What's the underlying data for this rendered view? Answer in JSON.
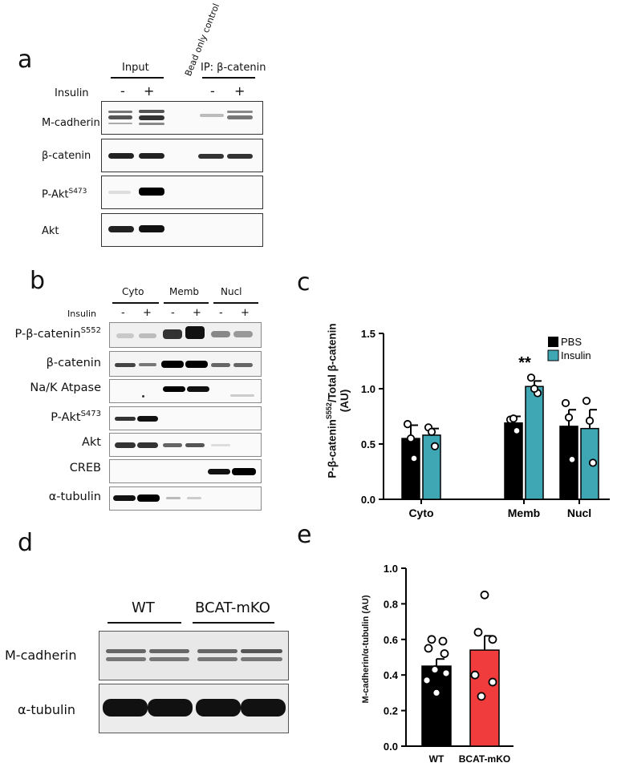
{
  "panels": {
    "a": "a",
    "b": "b",
    "c": "c",
    "d": "d",
    "e": "e"
  },
  "panel_a": {
    "input_label": "Input",
    "bead_label": "Bead only control",
    "ip_label": "IP: β-catenin",
    "insulin_label": "Insulin",
    "signs": [
      "-",
      "+",
      "-",
      "+"
    ],
    "rows": [
      "M-cadherin",
      "β-catenin",
      "P-Akt",
      "Akt"
    ],
    "pakt_sup": "S473"
  },
  "panel_b": {
    "fractions": [
      "Cyto",
      "Memb",
      "Nucl"
    ],
    "insulin_label": "Insulin",
    "signs": [
      "-",
      "+",
      "-",
      "+",
      "-",
      "+"
    ],
    "rows": [
      "P-β-catenin",
      "β-catenin",
      "Na/K Atpase",
      "P-Akt",
      "Akt",
      "CREB",
      "α-tubulin"
    ],
    "pbcat_sup": "S552",
    "pakt_sup": "S473"
  },
  "panel_d": {
    "groups": [
      "WT",
      "BCAT-mKO"
    ],
    "rows": [
      "M-cadherin",
      "α-tubulin"
    ]
  },
  "chart_data": [
    {
      "type": "bar",
      "id": "c",
      "ylabel_main": "P-β-catenin",
      "ylabel_sup": "S552",
      "ylabel_rest": "/Total β-catenin",
      "ylabel_unit": "(AU)",
      "categories": [
        "Cyto",
        "Memb",
        "Nucl"
      ],
      "ylim": [
        0,
        1.5
      ],
      "yticks": [
        "0.0",
        "0.5",
        "1.0",
        "1.5"
      ],
      "series": [
        {
          "name": "PBS",
          "color": "#000000",
          "values": [
            0.55,
            0.69,
            0.66
          ],
          "errors": [
            0.12,
            0.06,
            0.15
          ],
          "points": [
            [
              0.68,
              0.37,
              0.55
            ],
            [
              0.72,
              0.62,
              0.73
            ],
            [
              0.87,
              0.36,
              0.74
            ]
          ]
        },
        {
          "name": "Insulin",
          "color": "#3fa7b3",
          "values": [
            0.58,
            1.02,
            0.64
          ],
          "errors": [
            0.06,
            0.05,
            0.17
          ],
          "points": [
            [
              0.65,
              0.48,
              0.61
            ],
            [
              1.1,
              0.96,
              1.0
            ],
            [
              0.89,
              0.33,
              0.71
            ]
          ]
        }
      ],
      "annotation": "**",
      "legend": "top-right"
    },
    {
      "type": "bar",
      "id": "e",
      "ylabel": "M-cadherin/α-tubulin (AU)",
      "categories": [
        "WT",
        "BCAT-mKO"
      ],
      "ylim": [
        0,
        1.0
      ],
      "yticks": [
        "0.0",
        "0.2",
        "0.4",
        "0.6",
        "0.8",
        "1.0"
      ],
      "series": [
        {
          "name": "",
          "values": [
            0.45,
            0.54
          ],
          "errors": [
            0.04,
            0.08
          ],
          "colors": [
            "#000000",
            "#f03c3c"
          ],
          "points": [
            [
              0.6,
              0.59,
              0.55,
              0.52,
              0.43,
              0.41,
              0.37,
              0.3
            ],
            [
              0.85,
              0.64,
              0.6,
              0.4,
              0.36,
              0.28
            ]
          ]
        }
      ]
    }
  ]
}
